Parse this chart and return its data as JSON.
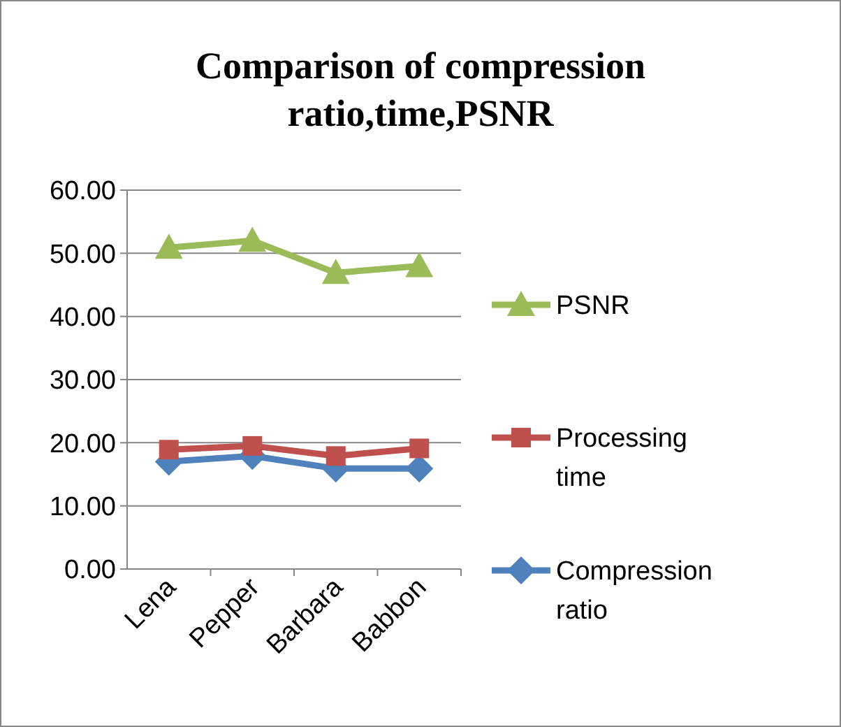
{
  "chart_data": {
    "type": "line",
    "title": "Comparison of compression ratio,time,PSNR",
    "categories": [
      "Lena",
      "Pepper",
      "Barbara",
      "Babbon"
    ],
    "series": [
      {
        "name": "PSNR",
        "color": "#9bbb59",
        "marker": "triangle",
        "values": [
          50.9,
          52.0,
          46.9,
          48.0
        ]
      },
      {
        "name": "Processing time",
        "color": "#c0504d",
        "marker": "square",
        "values": [
          18.9,
          19.5,
          17.9,
          19.1
        ]
      },
      {
        "name": "Compression ratio",
        "color": "#4f81bd",
        "marker": "diamond",
        "values": [
          17.0,
          17.9,
          15.9,
          15.9
        ]
      }
    ],
    "ylim": [
      0,
      60
    ],
    "yticks": [
      {
        "value": 0,
        "label": "0.00"
      },
      {
        "value": 10,
        "label": "10.00"
      },
      {
        "value": 20,
        "label": "20.00"
      },
      {
        "value": 30,
        "label": "30.00"
      },
      {
        "value": 40,
        "label": "40.00"
      },
      {
        "value": 50,
        "label": "50.00"
      },
      {
        "value": 60,
        "label": "60.00"
      }
    ],
    "grid": "y",
    "legend": "right"
  }
}
